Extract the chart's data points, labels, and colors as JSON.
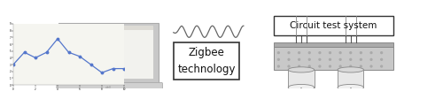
{
  "bg_color": "#ffffff",
  "zigbee_text": "Zigbee\ntechnology",
  "circuit_text": "Circuit test system",
  "plot_line_x": [
    0,
    1,
    2,
    3,
    4,
    5,
    6,
    7,
    8,
    9,
    10
  ],
  "plot_line_y": [
    3.0,
    4.8,
    4.0,
    4.8,
    6.8,
    4.8,
    4.2,
    3.0,
    1.8,
    2.4,
    2.4
  ],
  "plot_line_color": "#5577cc",
  "laptop_frame_color": "#cccccc",
  "laptop_base_color": "#d5d5d5",
  "laptop_screen_bg": "#f2f2ee",
  "laptop_menubar_color": "#e0ddd8",
  "wave_color": "#666666",
  "box_edge_color": "#333333",
  "plate_top_color": "#c8c8c8",
  "plate_side_color": "#aaaaaa",
  "cyl_body_color": "#e8e8e8",
  "cyl_top_color": "#f0f0f0",
  "wire_color": "#555555"
}
